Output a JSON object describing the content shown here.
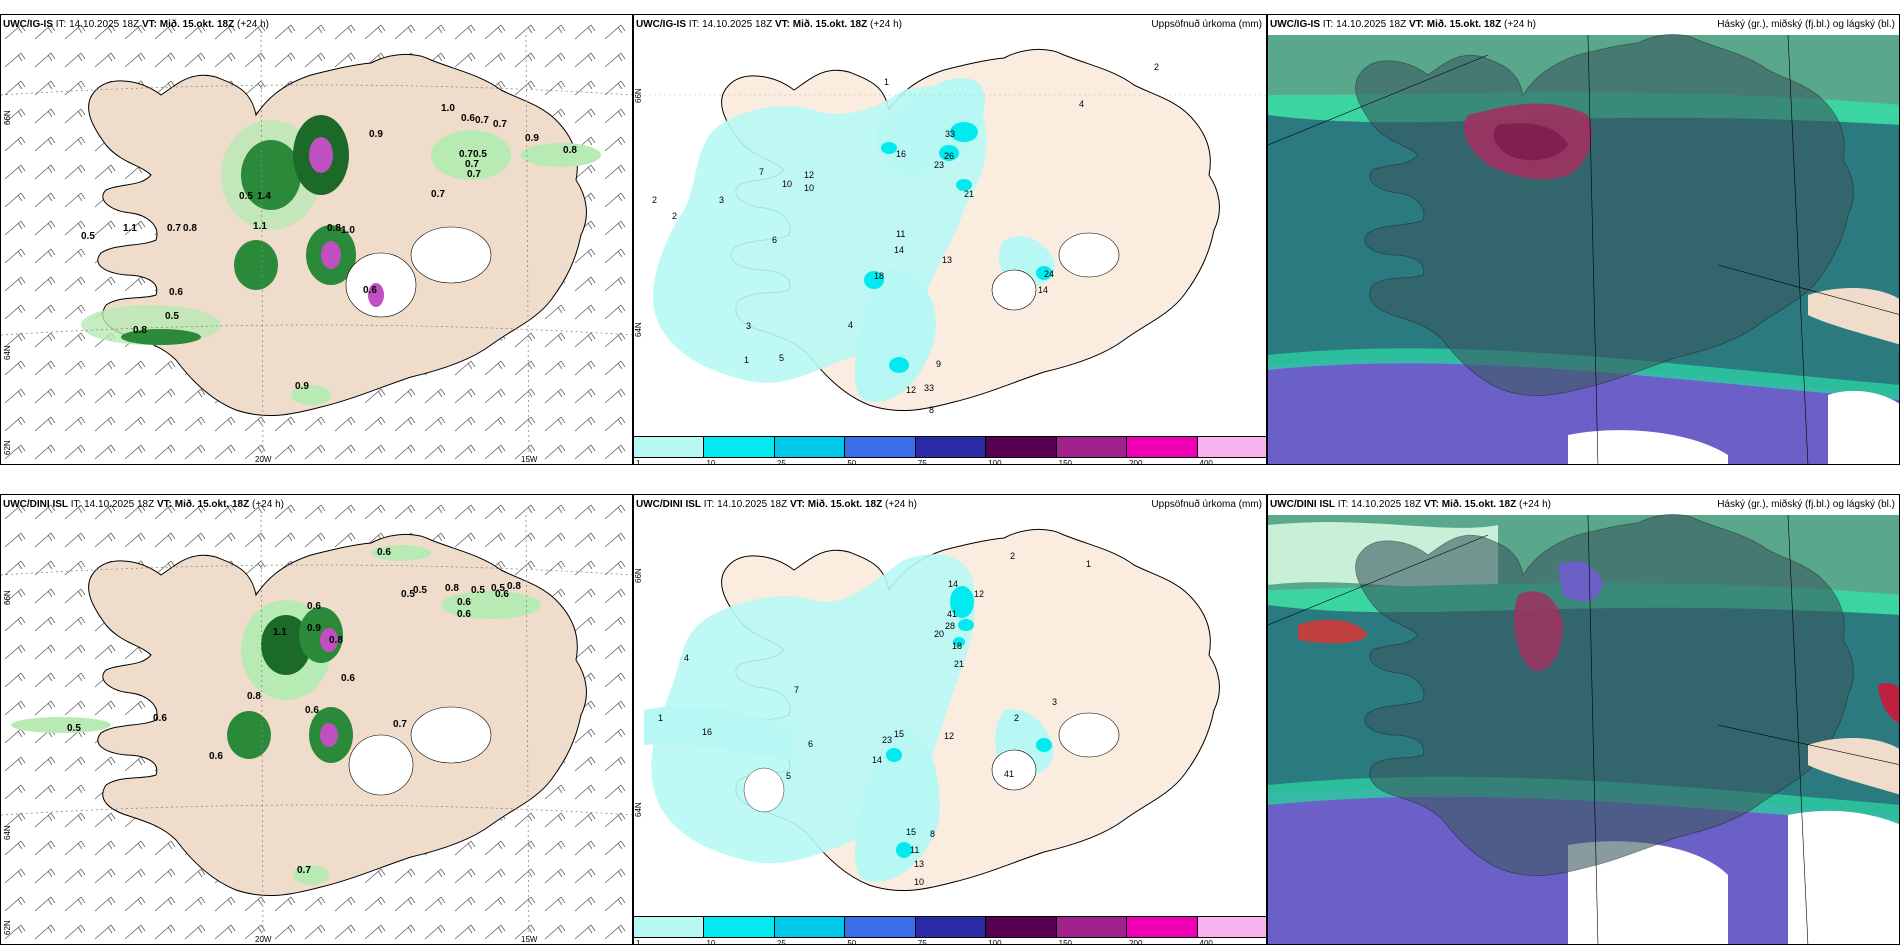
{
  "headers": {
    "prefix_ig": "UWC/IG-IS",
    "prefix_dini": "UWC/DINI ISL",
    "it": "IT: 14.10.2025 18Z",
    "vt": "VT: Mið. 15.okt. 18Z",
    "lead": "(+24 h)"
  },
  "panel_titles": {
    "precip": "Uppsöfnuð úrkoma (mm)",
    "clouds": "Háský (gr.), miðský (fj.bl.) og lágský (bl.)"
  },
  "axes": {
    "lat_66": "66N",
    "lat_64": "64N",
    "lat_62": "62N",
    "lon_20w": "20W",
    "lon_15w": "15W"
  },
  "colorbar": {
    "ticks": [
      "1",
      "10",
      "25",
      "50",
      "75",
      "100",
      "150",
      "200",
      "400"
    ],
    "colors": [
      "#b8f8f4",
      "#00eaf0",
      "#00c8e8",
      "#3a6ee8",
      "#2a2aa8",
      "#5a0050",
      "#a0208c",
      "#f000b4",
      "#f8b4f0"
    ]
  },
  "wind_ig_labels": [
    "1.0",
    "0.6",
    "0.7",
    "0.7",
    "0.9",
    "0.9",
    "0.8",
    "0.7",
    "0.5",
    "0.7",
    "0.7",
    "0.7",
    "0.5",
    "1.4",
    "1.1",
    "0.7",
    "0.8",
    "0.5",
    "1.0",
    "0.8",
    "1.1",
    "0.6",
    "0.5",
    "0.8",
    "0.9",
    "0.6"
  ],
  "wind_dini_labels": [
    "0.6",
    "0.5",
    "0.8",
    "0.5",
    "0.5",
    "0.8",
    "0.6",
    "0.6",
    "0.6",
    "0.6",
    "0.9",
    "0.8",
    "0.6",
    "0.8",
    "0.5",
    "1.1",
    "0.6",
    "0.6",
    "0.7",
    "0.6",
    "0.7",
    "0.5"
  ],
  "precip_ig_labels": [
    "2",
    "1",
    "4",
    "33",
    "16",
    "26",
    "23",
    "21",
    "12",
    "10",
    "14",
    "13",
    "11",
    "24",
    "14",
    "12",
    "33",
    "9",
    "8",
    "2",
    "3",
    "6",
    "7",
    "10",
    "18",
    "3",
    "2",
    "1",
    "4",
    "5"
  ],
  "precip_dini_labels": [
    "2",
    "1",
    "14",
    "12",
    "41",
    "28",
    "20",
    "18",
    "21",
    "12",
    "16",
    "15",
    "14",
    "23",
    "41",
    "10",
    "13",
    "11",
    "15",
    "8",
    "3",
    "2",
    "1",
    "6",
    "5",
    "4",
    "7"
  ]
}
